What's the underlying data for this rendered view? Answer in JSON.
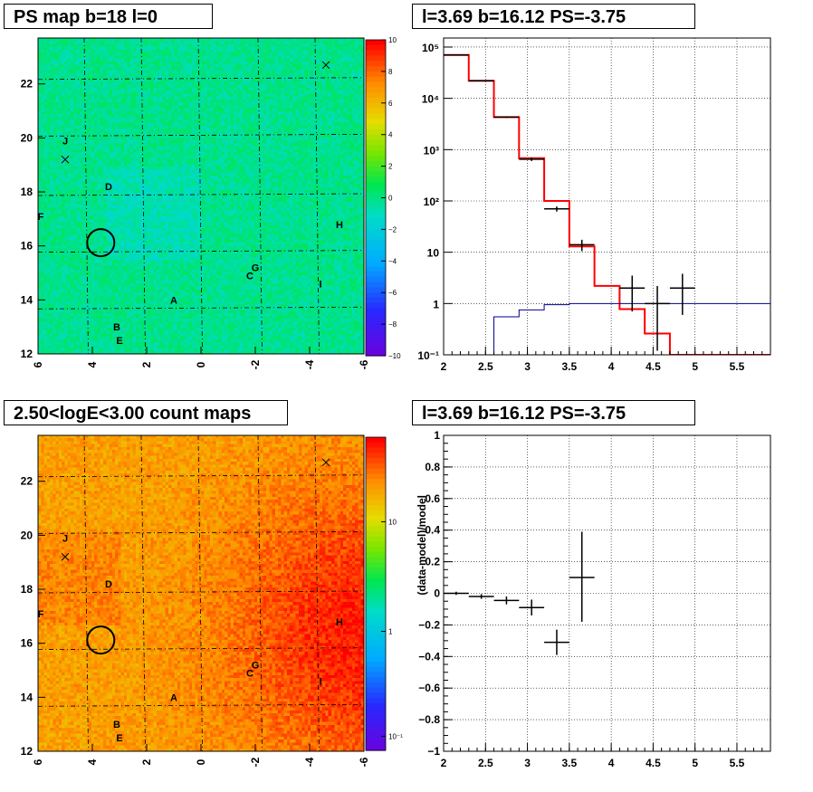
{
  "titles": {
    "ps_map": "PS map b=18 l=0",
    "spectrum": "l=3.69 b=16.12 PS=-3.75",
    "count_map": "2.50<logE<3.00 count maps",
    "residual": "l=3.69 b=16.12 PS=-3.75"
  },
  "chart_data": [
    {
      "type": "heatmap",
      "name": "ps-map",
      "title": "PS map b=18 l=0",
      "x_ticks": [
        "6",
        "4",
        "2",
        "0",
        "-2",
        "-4",
        "-6"
      ],
      "y_ticks": [
        "12",
        "14",
        "16",
        "18",
        "20",
        "22"
      ],
      "xlim": [
        6,
        -6
      ],
      "ylim": [
        12,
        23.7
      ],
      "colorbar": {
        "scale": "linear",
        "range": [
          -10,
          10
        ],
        "ticks": [
          "10",
          "8",
          "6",
          "4",
          "2",
          "0",
          "−2",
          "−4",
          "−6",
          "−8",
          "−10"
        ]
      },
      "source_labels": [
        {
          "text": "J",
          "l": 5.0,
          "b": 19.9
        },
        {
          "text": "D",
          "l": 3.4,
          "b": 18.2
        },
        {
          "text": "F",
          "l": 5.9,
          "b": 17.1
        },
        {
          "text": "H",
          "l": -5.1,
          "b": 16.8
        },
        {
          "text": "G",
          "l": -2.0,
          "b": 15.2
        },
        {
          "text": "C",
          "l": -1.8,
          "b": 14.9
        },
        {
          "text": "I",
          "l": -4.4,
          "b": 14.6
        },
        {
          "text": "A",
          "l": 1.0,
          "b": 14.0
        },
        {
          "text": "B",
          "l": 3.1,
          "b": 13.0
        },
        {
          "text": "E",
          "l": 3.0,
          "b": 12.5
        }
      ],
      "crosses": [
        {
          "l": -4.6,
          "b": 22.7
        },
        {
          "l": 5.0,
          "b": 19.2
        }
      ],
      "circle": {
        "l": 3.69,
        "b": 16.12
      }
    },
    {
      "type": "line",
      "name": "spectrum",
      "title": "l=3.69 b=16.12 PS=-3.75",
      "xlim": [
        2.0,
        5.9
      ],
      "ylim": [
        0.1,
        150000
      ],
      "yscale": "log",
      "x_ticks": [
        "2",
        "2.5",
        "3",
        "3.5",
        "4",
        "4.5",
        "5",
        "5.5"
      ],
      "y_ticks": [
        "10⁻¹",
        "1",
        "10",
        "10²",
        "10³",
        "10⁴",
        "10⁵"
      ],
      "bin_edges": [
        2.0,
        2.3,
        2.6,
        2.9,
        3.2,
        3.5,
        3.8,
        4.1,
        4.4,
        4.7,
        5.0,
        5.3,
        5.6,
        5.9
      ],
      "series": [
        {
          "color": "#ff0000",
          "values": [
            70000,
            22000,
            4300,
            680,
            100,
            13,
            2.2,
            0.78,
            0.26,
            0.1,
            0.1,
            0.1,
            0.1
          ]
        },
        {
          "color": "#00008b",
          "values": [
            0.05,
            0.05,
            0.55,
            0.75,
            0.95,
            1,
            1,
            1,
            1,
            1,
            1,
            1,
            1
          ]
        }
      ],
      "points": [
        {
          "x": 2.15,
          "y": 70000,
          "ylo": 69000,
          "yhi": 71000,
          "xerr": 0.15
        },
        {
          "x": 2.45,
          "y": 22000,
          "ylo": 21600,
          "yhi": 22400,
          "xerr": 0.15
        },
        {
          "x": 2.75,
          "y": 4300,
          "ylo": 4150,
          "yhi": 4450,
          "xerr": 0.15
        },
        {
          "x": 3.05,
          "y": 650,
          "ylo": 600,
          "yhi": 700,
          "xerr": 0.15
        },
        {
          "x": 3.35,
          "y": 70,
          "ylo": 62,
          "yhi": 78,
          "xerr": 0.15
        },
        {
          "x": 3.65,
          "y": 14,
          "ylo": 10.5,
          "yhi": 17.5,
          "xerr": 0.15
        },
        {
          "x": 4.25,
          "y": 2,
          "ylo": 0.7,
          "yhi": 3.5,
          "xerr": 0.15
        },
        {
          "x": 4.55,
          "y": 1,
          "ylo": 0.12,
          "yhi": 2.2,
          "xerr": 0.15
        },
        {
          "x": 4.85,
          "y": 2,
          "ylo": 0.6,
          "yhi": 3.8,
          "xerr": 0.15
        }
      ]
    },
    {
      "type": "heatmap",
      "name": "count-map",
      "title": "2.50<logE<3.00 count maps",
      "x_ticks": [
        "6",
        "4",
        "2",
        "0",
        "-2",
        "-4",
        "-6"
      ],
      "y_ticks": [
        "12",
        "14",
        "16",
        "18",
        "20",
        "22"
      ],
      "xlim": [
        6,
        -6
      ],
      "ylim": [
        12,
        23.7
      ],
      "colorbar": {
        "scale": "log",
        "range": [
          0.06,
          60
        ],
        "ticks": [
          "10",
          "1",
          "10⁻¹"
        ]
      },
      "source_labels": [
        {
          "text": "J",
          "l": 5.0,
          "b": 19.9
        },
        {
          "text": "D",
          "l": 3.4,
          "b": 18.2
        },
        {
          "text": "F",
          "l": 5.9,
          "b": 17.1
        },
        {
          "text": "H",
          "l": -5.1,
          "b": 16.8
        },
        {
          "text": "G",
          "l": -2.0,
          "b": 15.2
        },
        {
          "text": "C",
          "l": -1.8,
          "b": 14.9
        },
        {
          "text": "I",
          "l": -4.4,
          "b": 14.6
        },
        {
          "text": "A",
          "l": 1.0,
          "b": 14.0
        },
        {
          "text": "B",
          "l": 3.1,
          "b": 13.0
        },
        {
          "text": "E",
          "l": 3.0,
          "b": 12.5
        }
      ],
      "crosses": [
        {
          "l": -4.6,
          "b": 22.7
        },
        {
          "l": 5.0,
          "b": 19.2
        }
      ],
      "circle": {
        "l": 3.69,
        "b": 16.12
      }
    },
    {
      "type": "scatter",
      "name": "residual",
      "title": "l=3.69 b=16.12 PS=-3.75",
      "ylabel": "(data-model)/model",
      "xlim": [
        2.0,
        5.9
      ],
      "ylim": [
        -1,
        1
      ],
      "x_ticks": [
        "2",
        "2.5",
        "3",
        "3.5",
        "4",
        "4.5",
        "5",
        "5.5"
      ],
      "y_ticks": [
        "−1",
        "−0.8",
        "−0.6",
        "−0.4",
        "−0.2",
        "0",
        "0.2",
        "0.4",
        "0.6",
        "0.8",
        "1"
      ],
      "points": [
        {
          "x": 2.15,
          "y": 0.0,
          "ylo": -0.01,
          "yhi": 0.01,
          "xerr": 0.15
        },
        {
          "x": 2.45,
          "y": -0.02,
          "ylo": -0.035,
          "yhi": -0.005,
          "xerr": 0.15
        },
        {
          "x": 2.75,
          "y": -0.045,
          "ylo": -0.07,
          "yhi": -0.02,
          "xerr": 0.15
        },
        {
          "x": 3.05,
          "y": -0.09,
          "ylo": -0.14,
          "yhi": -0.04,
          "xerr": 0.15
        },
        {
          "x": 3.35,
          "y": -0.31,
          "ylo": -0.39,
          "yhi": -0.23,
          "xerr": 0.15
        },
        {
          "x": 3.65,
          "y": 0.1,
          "ylo": -0.18,
          "yhi": 0.39,
          "xerr": 0.15
        }
      ]
    }
  ]
}
